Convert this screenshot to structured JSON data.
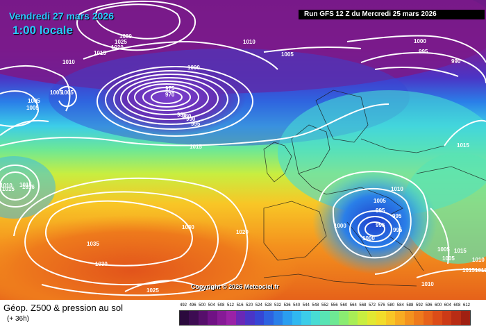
{
  "map": {
    "valid_date": "Vendredi 27 mars 2026",
    "valid_time": "1:00 locale",
    "run_info": "Run GFS 12 Z du Mercredi 25 mars 2026",
    "copyright": "Copyright © 2026 Meteociel.fr",
    "isobar_labels": [
      "1030",
      "1025",
      "1020",
      "1015",
      "1010",
      "1005",
      "1000",
      "995",
      "990",
      "985",
      "980",
      "975",
      "970",
      "1030",
      "1035",
      "1030",
      "1025",
      "1020",
      "1015",
      "1010",
      "1005",
      "1000",
      "995",
      "995",
      "995",
      "995",
      "1000",
      "1005",
      "1005",
      "1010",
      "1015",
      "1005",
      "1010",
      "1015",
      "1005",
      "1016",
      "1000",
      "995",
      "990",
      "1005",
      "1005",
      "1015",
      "1010",
      "1015",
      "1010",
      "1015",
      "1015"
    ],
    "colors": {
      "high_geopotential": "#e2541b",
      "low_geopotential": "#7a1a8a",
      "isobar_line": "#ffffff",
      "title_text": "#29c8ff"
    }
  },
  "legend": {
    "product_title": "Géop. Z500 & pression au sol",
    "lead_time": "(+ 36h)",
    "scale_ticks": [
      "492",
      "496",
      "500",
      "504",
      "508",
      "512",
      "516",
      "520",
      "524",
      "528",
      "532",
      "536",
      "540",
      "544",
      "548",
      "552",
      "556",
      "560",
      "564",
      "568",
      "572",
      "576",
      "580",
      "584",
      "588",
      "592",
      "596",
      "600",
      "604",
      "608",
      "612"
    ],
    "scale_colors": [
      "#2b0a3d",
      "#3d0c52",
      "#560f6b",
      "#701284",
      "#861a96",
      "#9a22a6",
      "#6a28b6",
      "#4a35c6",
      "#3546d4",
      "#2d62e0",
      "#2a7fe8",
      "#2a9ef0",
      "#30b8f0",
      "#3ccde8",
      "#48dcd4",
      "#58e4b4",
      "#6ee894",
      "#8aec72",
      "#a8ee56",
      "#c8ee40",
      "#e2e832",
      "#f2dc2a",
      "#f8c626",
      "#f8ac22",
      "#f4921e",
      "#ee7a1c",
      "#e6621a",
      "#dc4c18",
      "#cc3a16",
      "#b82c14",
      "#a02012"
    ]
  }
}
